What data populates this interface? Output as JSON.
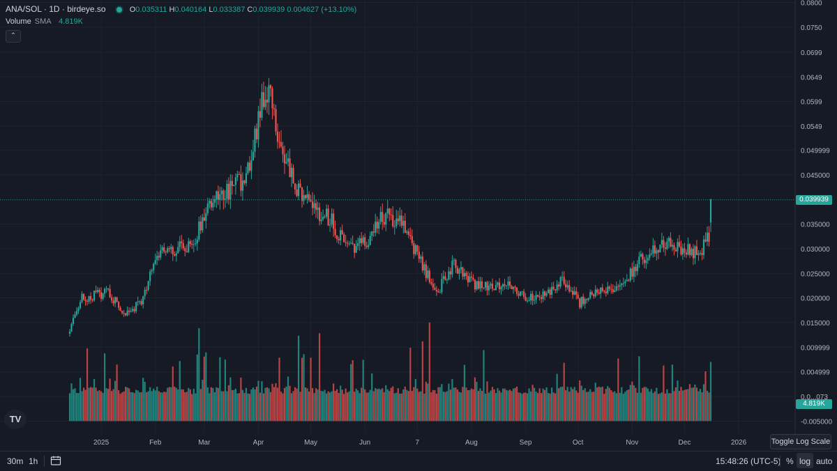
{
  "header": {
    "symbol": "ANA/SOL · 1D · birdeye.so",
    "open_label": "O",
    "open": "0.035311",
    "high_label": "H",
    "high": "0.040164",
    "low_label": "L",
    "low": "0.033387",
    "close_label": "C",
    "close": "0.039939",
    "change": "0.004627 (+13.10%)"
  },
  "volume_legend": {
    "label": "Volume",
    "sma": "SMA",
    "value": "4.819K"
  },
  "price_tag": "0.039939",
  "volume_tag": "4.819K",
  "toggle_log_label": "Toggle Log Scale",
  "logo_text": "TV",
  "collapse_icon": "chevron-up-icon",
  "bottom_bar": {
    "timeframes": [
      "30m",
      "1h"
    ],
    "calendar_icon": "calendar-icon",
    "clock": "15:48:26 (UTC-5)",
    "percent": "%",
    "log": "log",
    "auto": "auto"
  },
  "colors": {
    "up": "#26a69a",
    "down": "#ef5350",
    "background": "#161a25",
    "grid": "#1f2330"
  },
  "chart_data": {
    "type": "candlestick",
    "title": "",
    "price_axis_labels": [
      "0.0800",
      "0.0750",
      "0.0699",
      "0.0649",
      "0.0599",
      "0.0549",
      "0.049999",
      "0.045000",
      "0.035000",
      "0.030000",
      "0.025000",
      "0.020000",
      "0.015000",
      "0.009999",
      "0.004999",
      "0.0...073",
      "-0.005000"
    ],
    "price_axis_values": [
      0.08,
      0.075,
      0.0699,
      0.0649,
      0.0599,
      0.0549,
      0.049999,
      0.045,
      0.035,
      0.03,
      0.025,
      0.02,
      0.015,
      0.009999,
      0.004999,
      0.0,
      -0.005
    ],
    "x_axis_labels": [
      "2025",
      "Feb",
      "Mar",
      "Apr",
      "May",
      "Jun",
      "7",
      "Aug",
      "Sep",
      "Oct",
      "Nov",
      "Dec",
      "2026"
    ],
    "x_axis_dates": [
      "2025-01-01",
      "2025-02-01",
      "2025-03-01",
      "2025-04-01",
      "2025-05-01",
      "2025-06-01",
      "2025-07-01",
      "2025-08-01",
      "2025-09-01",
      "2025-10-01",
      "2025-11-01",
      "2025-12-01",
      "2026-01-01"
    ],
    "ylim": [
      -0.0075,
      0.0805
    ],
    "start_date": "2024-12-14",
    "end_date": "2025-12-16",
    "close_anchor_dates": [
      "2024-12-14",
      "2024-12-20",
      "2025-01-05",
      "2025-01-15",
      "2025-01-24",
      "2025-02-02",
      "2025-02-12",
      "2025-02-22",
      "2025-03-05",
      "2025-03-15",
      "2025-03-25",
      "2025-04-03",
      "2025-04-08",
      "2025-04-13",
      "2025-04-22",
      "2025-05-02",
      "2025-05-12",
      "2025-05-22",
      "2025-06-02",
      "2025-06-10",
      "2025-06-22",
      "2025-07-02",
      "2025-07-12",
      "2025-07-22",
      "2025-08-01",
      "2025-08-12",
      "2025-08-22",
      "2025-09-02",
      "2025-09-12",
      "2025-09-22",
      "2025-10-02",
      "2025-10-12",
      "2025-10-22",
      "2025-11-02",
      "2025-11-12",
      "2025-11-20",
      "2025-12-01",
      "2025-12-10",
      "2025-12-15",
      "2025-12-16"
    ],
    "close_anchor_values": [
      0.013,
      0.02,
      0.021,
      0.017,
      0.019,
      0.029,
      0.03,
      0.031,
      0.04,
      0.042,
      0.044,
      0.06,
      0.062,
      0.052,
      0.043,
      0.038,
      0.036,
      0.03,
      0.031,
      0.037,
      0.035,
      0.028,
      0.021,
      0.027,
      0.023,
      0.022,
      0.023,
      0.02,
      0.0205,
      0.024,
      0.019,
      0.022,
      0.021,
      0.026,
      0.03,
      0.031,
      0.03,
      0.029,
      0.033,
      0.039939
    ],
    "volume_scale_note": "tallest bars reach about 0.0150 on the price axis",
    "last_close": 0.039939,
    "last_volume": "4.819K"
  }
}
